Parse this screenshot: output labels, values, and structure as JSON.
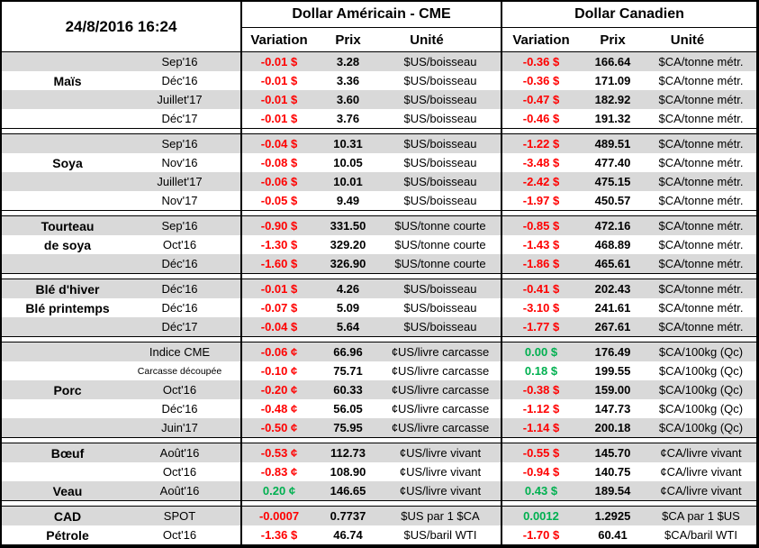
{
  "meta": {
    "timestamp": "24/8/2016 16:24"
  },
  "colors": {
    "stripe": "#D9D9D9",
    "negative": "#FF0000",
    "positive": "#00B050",
    "border": "#000000"
  },
  "header": {
    "us": {
      "title": "Dollar Américain - CME",
      "cols": [
        "Variation",
        "Prix",
        "Unité"
      ]
    },
    "ca": {
      "title": "Dollar Canadien",
      "cols": [
        "Variation",
        "Prix",
        "Unité"
      ]
    }
  },
  "groups": [
    {
      "name": "Maïs",
      "rows": [
        {
          "label": "",
          "month": "Sep'16",
          "us_var": "-0.01 $",
          "us_dir": "neg",
          "us_prix": "3.28",
          "us_unit": "$US/boisseau",
          "ca_var": "-0.36 $",
          "ca_dir": "neg",
          "ca_prix": "166.64",
          "ca_unit": "$CA/tonne métr."
        },
        {
          "label": "Maïs",
          "month": "Déc'16",
          "us_var": "-0.01 $",
          "us_dir": "neg",
          "us_prix": "3.36",
          "us_unit": "$US/boisseau",
          "ca_var": "-0.36 $",
          "ca_dir": "neg",
          "ca_prix": "171.09",
          "ca_unit": "$CA/tonne métr."
        },
        {
          "label": "",
          "month": "Juillet'17",
          "us_var": "-0.01 $",
          "us_dir": "neg",
          "us_prix": "3.60",
          "us_unit": "$US/boisseau",
          "ca_var": "-0.47 $",
          "ca_dir": "neg",
          "ca_prix": "182.92",
          "ca_unit": "$CA/tonne métr."
        },
        {
          "label": "",
          "month": "Déc'17",
          "us_var": "-0.01 $",
          "us_dir": "neg",
          "us_prix": "3.76",
          "us_unit": "$US/boisseau",
          "ca_var": "-0.46 $",
          "ca_dir": "neg",
          "ca_prix": "191.32",
          "ca_unit": "$CA/tonne métr."
        }
      ]
    },
    {
      "name": "Soya",
      "rows": [
        {
          "label": "",
          "month": "Sep'16",
          "us_var": "-0.04 $",
          "us_dir": "neg",
          "us_prix": "10.31",
          "us_unit": "$US/boisseau",
          "ca_var": "-1.22 $",
          "ca_dir": "neg",
          "ca_prix": "489.51",
          "ca_unit": "$CA/tonne métr."
        },
        {
          "label": "Soya",
          "month": "Nov'16",
          "us_var": "-0.08 $",
          "us_dir": "neg",
          "us_prix": "10.05",
          "us_unit": "$US/boisseau",
          "ca_var": "-3.48 $",
          "ca_dir": "neg",
          "ca_prix": "477.40",
          "ca_unit": "$CA/tonne métr."
        },
        {
          "label": "",
          "month": "Juillet'17",
          "us_var": "-0.06 $",
          "us_dir": "neg",
          "us_prix": "10.01",
          "us_unit": "$US/boisseau",
          "ca_var": "-2.42 $",
          "ca_dir": "neg",
          "ca_prix": "475.15",
          "ca_unit": "$CA/tonne métr."
        },
        {
          "label": "",
          "month": "Nov'17",
          "us_var": "-0.05 $",
          "us_dir": "neg",
          "us_prix": "9.49",
          "us_unit": "$US/boisseau",
          "ca_var": "-1.97 $",
          "ca_dir": "neg",
          "ca_prix": "450.57",
          "ca_unit": "$CA/tonne métr."
        }
      ]
    },
    {
      "name": "Tourteau de soya",
      "rows": [
        {
          "label": "Tourteau",
          "month": "Sep'16",
          "us_var": "-0.90 $",
          "us_dir": "neg",
          "us_prix": "331.50",
          "us_unit": "$US/tonne courte",
          "ca_var": "-0.85 $",
          "ca_dir": "neg",
          "ca_prix": "472.16",
          "ca_unit": "$CA/tonne métr."
        },
        {
          "label": "de soya",
          "month": "Oct'16",
          "us_var": "-1.30 $",
          "us_dir": "neg",
          "us_prix": "329.20",
          "us_unit": "$US/tonne courte",
          "ca_var": "-1.43 $",
          "ca_dir": "neg",
          "ca_prix": "468.89",
          "ca_unit": "$CA/tonne métr."
        },
        {
          "label": "",
          "month": "Déc'16",
          "us_var": "-1.60 $",
          "us_dir": "neg",
          "us_prix": "326.90",
          "us_unit": "$US/tonne courte",
          "ca_var": "-1.86 $",
          "ca_dir": "neg",
          "ca_prix": "465.61",
          "ca_unit": "$CA/tonne métr."
        }
      ]
    },
    {
      "name": "Blé",
      "rows": [
        {
          "label": "Blé d'hiver",
          "month": "Déc'16",
          "us_var": "-0.01 $",
          "us_dir": "neg",
          "us_prix": "4.26",
          "us_unit": "$US/boisseau",
          "ca_var": "-0.41 $",
          "ca_dir": "neg",
          "ca_prix": "202.43",
          "ca_unit": "$CA/tonne métr."
        },
        {
          "label": "Blé printemps",
          "month": "Déc'16",
          "us_var": "-0.07 $",
          "us_dir": "neg",
          "us_prix": "5.09",
          "us_unit": "$US/boisseau",
          "ca_var": "-3.10 $",
          "ca_dir": "neg",
          "ca_prix": "241.61",
          "ca_unit": "$CA/tonne métr."
        },
        {
          "label": "",
          "month": "Déc'17",
          "us_var": "-0.04 $",
          "us_dir": "neg",
          "us_prix": "5.64",
          "us_unit": "$US/boisseau",
          "ca_var": "-1.77 $",
          "ca_dir": "neg",
          "ca_prix": "267.61",
          "ca_unit": "$CA/tonne métr."
        }
      ]
    },
    {
      "name": "Porc",
      "rows": [
        {
          "label": "",
          "month": "Indice CME",
          "us_var": "-0.06 ¢",
          "us_dir": "neg",
          "us_prix": "66.96",
          "us_unit": "¢US/livre carcasse",
          "ca_var": "0.00 $",
          "ca_dir": "pos",
          "ca_prix": "176.49",
          "ca_unit": "$CA/100kg (Qc)"
        },
        {
          "label": "",
          "month": "Carcasse découpée",
          "month_small": true,
          "us_var": "-0.10 ¢",
          "us_dir": "neg",
          "us_prix": "75.71",
          "us_unit": "¢US/livre carcasse",
          "ca_var": "0.18 $",
          "ca_dir": "pos",
          "ca_prix": "199.55",
          "ca_unit": "$CA/100kg (Qc)"
        },
        {
          "label": "Porc",
          "month": "Oct'16",
          "us_var": "-0.20 ¢",
          "us_dir": "neg",
          "us_prix": "60.33",
          "us_unit": "¢US/livre carcasse",
          "ca_var": "-0.38 $",
          "ca_dir": "neg",
          "ca_prix": "159.00",
          "ca_unit": "$CA/100kg (Qc)"
        },
        {
          "label": "",
          "month": "Déc'16",
          "us_var": "-0.48 ¢",
          "us_dir": "neg",
          "us_prix": "56.05",
          "us_unit": "¢US/livre carcasse",
          "ca_var": "-1.12 $",
          "ca_dir": "neg",
          "ca_prix": "147.73",
          "ca_unit": "$CA/100kg (Qc)"
        },
        {
          "label": "",
          "month": "Juin'17",
          "us_var": "-0.50 ¢",
          "us_dir": "neg",
          "us_prix": "75.95",
          "us_unit": "¢US/livre carcasse",
          "ca_var": "-1.14 $",
          "ca_dir": "neg",
          "ca_prix": "200.18",
          "ca_unit": "$CA/100kg (Qc)"
        }
      ]
    },
    {
      "name": "Bœuf / Veau",
      "rows": [
        {
          "label": "Bœuf",
          "month": "Août'16",
          "us_var": "-0.53 ¢",
          "us_dir": "neg",
          "us_prix": "112.73",
          "us_unit": "¢US/livre vivant",
          "ca_var": "-0.55 $",
          "ca_dir": "neg",
          "ca_prix": "145.70",
          "ca_unit": "¢CA/livre vivant"
        },
        {
          "label": "",
          "month": "Oct'16",
          "us_var": "-0.83 ¢",
          "us_dir": "neg",
          "us_prix": "108.90",
          "us_unit": "¢US/livre vivant",
          "ca_var": "-0.94 $",
          "ca_dir": "neg",
          "ca_prix": "140.75",
          "ca_unit": "¢CA/livre vivant"
        },
        {
          "label": "Veau",
          "month": "Août'16",
          "us_var": "0.20 ¢",
          "us_dir": "pos",
          "us_prix": "146.65",
          "us_unit": "¢US/livre vivant",
          "ca_var": "0.43 $",
          "ca_dir": "pos",
          "ca_prix": "189.54",
          "ca_unit": "¢CA/livre vivant"
        }
      ]
    },
    {
      "name": "CAD / Pétrole",
      "rows": [
        {
          "label": "CAD",
          "month": "SPOT",
          "us_var": "-0.0007",
          "us_dir": "neg",
          "us_prix": "0.7737",
          "us_unit": "$US par 1 $CA",
          "ca_var": "0.0012",
          "ca_dir": "pos",
          "ca_prix": "1.2925",
          "ca_unit": "$CA par 1 $US"
        },
        {
          "label": "Pétrole",
          "month": "Oct'16",
          "us_var": "-1.36 $",
          "us_dir": "neg",
          "us_prix": "46.74",
          "us_unit": "$US/baril WTI",
          "ca_var": "-1.70 $",
          "ca_dir": "neg",
          "ca_prix": "60.41",
          "ca_unit": "$CA/baril WTI"
        }
      ]
    }
  ]
}
